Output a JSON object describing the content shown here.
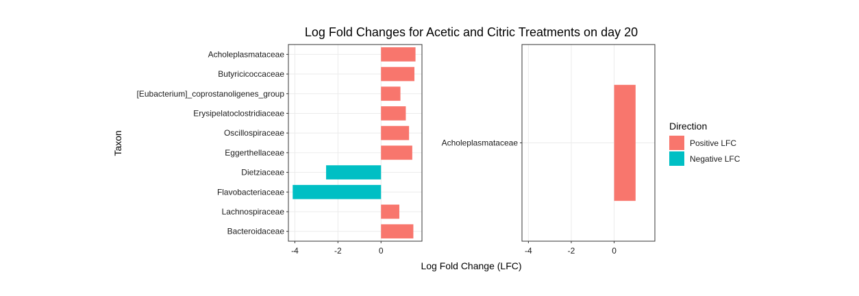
{
  "chart_data": {
    "type": "bar",
    "orientation": "horizontal",
    "title": "Log Fold Changes for Acetic and Citric Treatments on day 20",
    "xlabel": "Log Fold Change (LFC)",
    "ylabel": "Taxon",
    "xlim": [
      -4.3,
      1.9
    ],
    "x_ticks": [
      "-4",
      "-2",
      "0"
    ],
    "grid": true,
    "legend": {
      "title": "Direction",
      "position": "right",
      "entries": [
        {
          "label": "Positive LFC",
          "color": "#F8766D"
        },
        {
          "label": "Negative LFC",
          "color": "#00BFC4"
        }
      ]
    },
    "panels": [
      {
        "categories": [
          "Acholeplasmataceae",
          "Butyricicoccaceae",
          "[Eubacterium]_coprostanoligenes_group",
          "Erysipelatoclostridiaceae",
          "Oscillospiraceae",
          "Eggerthellaceae",
          "Dietziaceae",
          "Flavobacteriaceae",
          "Lachnospiraceae",
          "Bacteroidaceae"
        ],
        "values": [
          1.6,
          1.55,
          0.9,
          1.15,
          1.3,
          1.45,
          -2.55,
          -4.1,
          0.85,
          1.5
        ],
        "directions": [
          "Positive LFC",
          "Positive LFC",
          "Positive LFC",
          "Positive LFC",
          "Positive LFC",
          "Positive LFC",
          "Negative LFC",
          "Negative LFC",
          "Positive LFC",
          "Positive LFC"
        ]
      },
      {
        "categories": [
          "Acholeplasmataceae"
        ],
        "values": [
          1.0
        ],
        "directions": [
          "Positive LFC"
        ]
      }
    ]
  }
}
